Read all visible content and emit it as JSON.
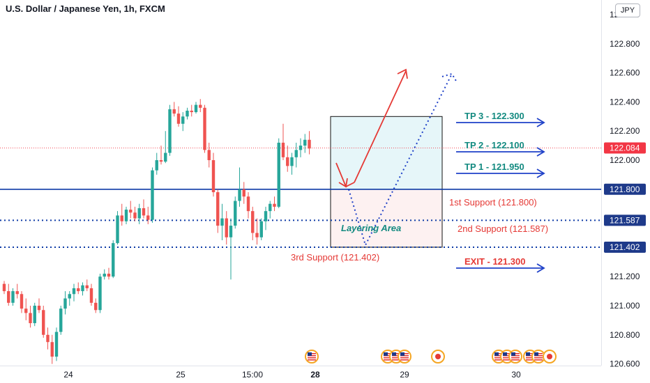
{
  "chart_title": "U.S. Dollar / Japanese Yen, 1h, FXCM",
  "currency": "JPY",
  "colors": {
    "up": "#26a69a",
    "down": "#ef5350",
    "level_line": "#0d3aa6",
    "tp_text": "#138a80",
    "support_text": "#e53935",
    "arrow_blue": "#1e40c8",
    "target_box": "#e6f6f9",
    "support_box": "#fdf1f1",
    "badge": "#1e3a8a",
    "current_badge": "#f23645"
  },
  "chart_data": {
    "type": "candlestick",
    "y_axis": {
      "ticks": [
        120.6,
        120.8,
        121.0,
        121.2,
        121.4,
        121.6,
        121.8,
        122.0,
        122.2,
        122.4,
        122.6,
        122.8,
        123.0
      ],
      "tick_labels": [
        "120.600",
        "120.800",
        "121.000",
        "121.200",
        "121.400",
        "121.600",
        "121.800",
        "122.000",
        "122.200",
        "122.400",
        "122.600",
        "122.800",
        "123.000"
      ],
      "range": [
        120.55,
        123.1
      ]
    },
    "x_axis": {
      "labels": [
        "24",
        "25",
        "15:00",
        "28",
        "29",
        "30"
      ],
      "bold": [
        "28"
      ]
    },
    "current_price": "122.084",
    "price_badges": [
      "121.800",
      "121.587",
      "121.402"
    ],
    "candles": [
      [
        121.15,
        121.17,
        121.08,
        121.1
      ],
      [
        121.1,
        121.15,
        121.0,
        121.02
      ],
      [
        121.02,
        121.12,
        121.0,
        121.1
      ],
      [
        121.1,
        121.15,
        121.05,
        121.08
      ],
      [
        121.08,
        121.1,
        120.95,
        120.98
      ],
      [
        120.98,
        121.05,
        120.9,
        120.95
      ],
      [
        120.95,
        121.0,
        120.85,
        120.88
      ],
      [
        120.88,
        121.02,
        120.86,
        121.0
      ],
      [
        121.0,
        121.05,
        120.95,
        120.97
      ],
      [
        120.97,
        121.0,
        120.78,
        120.8
      ],
      [
        120.8,
        120.85,
        120.7,
        120.75
      ],
      [
        120.75,
        120.8,
        120.6,
        120.65
      ],
      [
        120.65,
        120.85,
        120.62,
        120.82
      ],
      [
        120.82,
        121.0,
        120.8,
        120.98
      ],
      [
        120.98,
        121.1,
        120.94,
        121.05
      ],
      [
        121.05,
        121.1,
        121.0,
        121.08
      ],
      [
        121.08,
        121.15,
        121.03,
        121.12
      ],
      [
        121.12,
        121.16,
        121.08,
        121.1
      ],
      [
        121.1,
        121.16,
        121.07,
        121.14
      ],
      [
        121.14,
        121.18,
        121.1,
        121.12
      ],
      [
        121.12,
        121.15,
        121.0,
        121.02
      ],
      [
        121.02,
        121.05,
        120.95,
        120.97
      ],
      [
        120.97,
        121.22,
        120.95,
        121.2
      ],
      [
        121.2,
        121.25,
        121.18,
        121.22
      ],
      [
        121.22,
        121.26,
        121.18,
        121.2
      ],
      [
        121.2,
        121.45,
        121.19,
        121.43
      ],
      [
        121.43,
        121.65,
        121.42,
        121.62
      ],
      [
        121.62,
        121.7,
        121.55,
        121.58
      ],
      [
        121.58,
        121.68,
        121.56,
        121.66
      ],
      [
        121.66,
        121.72,
        121.6,
        121.64
      ],
      [
        121.64,
        121.68,
        121.58,
        121.6
      ],
      [
        121.6,
        121.7,
        121.56,
        121.67
      ],
      [
        121.67,
        121.73,
        121.6,
        121.62
      ],
      [
        121.62,
        121.68,
        121.56,
        121.59
      ],
      [
        121.59,
        121.95,
        121.57,
        121.93
      ],
      [
        121.93,
        122.05,
        121.9,
        122.0
      ],
      [
        122.0,
        122.1,
        121.97,
        121.99
      ],
      [
        121.99,
        122.2,
        121.98,
        122.05
      ],
      [
        122.05,
        122.38,
        122.03,
        122.35
      ],
      [
        122.35,
        122.4,
        122.3,
        122.32
      ],
      [
        122.32,
        122.37,
        122.23,
        122.25
      ],
      [
        122.25,
        122.33,
        122.2,
        122.3
      ],
      [
        122.3,
        122.36,
        122.28,
        122.34
      ],
      [
        122.34,
        122.38,
        122.3,
        122.33
      ],
      [
        122.33,
        122.4,
        122.32,
        122.38
      ],
      [
        122.38,
        122.42,
        122.33,
        122.36
      ],
      [
        122.36,
        122.38,
        122.05,
        122.07
      ],
      [
        122.07,
        122.12,
        121.95,
        122.0
      ],
      [
        122.0,
        122.05,
        121.75,
        121.78
      ],
      [
        121.78,
        121.8,
        121.5,
        121.55
      ],
      [
        121.55,
        121.7,
        121.45,
        121.6
      ],
      [
        121.6,
        121.65,
        121.42,
        121.47
      ],
      [
        121.47,
        121.6,
        121.18,
        121.55
      ],
      [
        121.55,
        121.75,
        121.53,
        121.72
      ],
      [
        121.72,
        121.95,
        121.68,
        121.8
      ],
      [
        121.8,
        121.85,
        121.7,
        121.75
      ],
      [
        121.75,
        121.78,
        121.6,
        121.65
      ],
      [
        121.65,
        121.68,
        121.45,
        121.5
      ],
      [
        121.5,
        121.6,
        121.42,
        121.47
      ],
      [
        121.47,
        121.6,
        121.45,
        121.58
      ],
      [
        121.58,
        121.68,
        121.52,
        121.65
      ],
      [
        121.65,
        121.72,
        121.6,
        121.7
      ],
      [
        121.7,
        121.75,
        121.65,
        121.68
      ],
      [
        121.68,
        122.15,
        121.67,
        122.12
      ],
      [
        122.12,
        122.25,
        122.0,
        122.02
      ],
      [
        122.02,
        122.1,
        121.92,
        121.96
      ],
      [
        121.96,
        122.05,
        121.9,
        122.02
      ],
      [
        122.02,
        122.12,
        121.95,
        122.07
      ],
      [
        122.07,
        122.15,
        122.02,
        122.1
      ],
      [
        122.1,
        122.18,
        122.05,
        122.14
      ],
      [
        122.14,
        122.2,
        122.04,
        122.08
      ]
    ],
    "levels": [
      {
        "label": "1st Support (121.800)",
        "value": 121.8,
        "style": "solid"
      },
      {
        "label": "2nd Support (121.587)",
        "value": 121.587,
        "style": "dotted"
      },
      {
        "label": "3rd Support (121.402)",
        "value": 121.402,
        "style": "dotted"
      }
    ],
    "targets": [
      {
        "label": "TP 3 - 122.300",
        "value": 122.3
      },
      {
        "label": "TP 2 - 122.100",
        "value": 122.1
      },
      {
        "label": "TP 1 - 121.950",
        "value": 121.95
      },
      {
        "label": "EXIT - 121.300",
        "value": 121.3
      }
    ],
    "annotation": "Layering Area",
    "event_markers": [
      {
        "type": "us-flag",
        "count": 1,
        "group": 1
      },
      {
        "type": "us-flag",
        "count": 3,
        "group": 2
      },
      {
        "type": "red-circle",
        "count": 1,
        "group": 3
      },
      {
        "type": "us-flag",
        "count": 3,
        "group": 4
      },
      {
        "type": "us-flag",
        "count": 2,
        "group": 5
      },
      {
        "type": "red-circle",
        "count": 1,
        "group": 5
      }
    ]
  }
}
